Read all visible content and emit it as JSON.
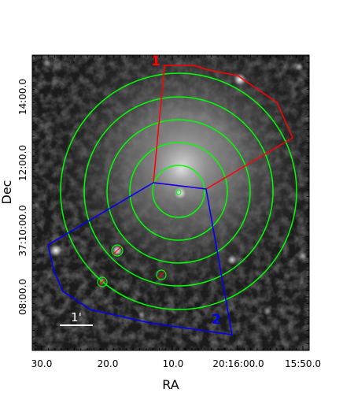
{
  "axes": {
    "xlabel": "RA",
    "ylabel": "Dec",
    "x_ticks": [
      "30.0",
      "20.0",
      "10.0",
      "20:16:00.0",
      "15:50.0"
    ],
    "y_ticks": [
      "08:00.0",
      "37:10:00.0",
      "12:00.0",
      "14:00.0"
    ]
  },
  "overlay": {
    "scale_bar_label": "1'",
    "region_1_label": "1",
    "region_2_label": "2",
    "region_1_color": "#ff0000",
    "region_2_color": "#0000ff",
    "annulus_color": "#00ff00",
    "source_marker_color": "#ff0000"
  },
  "image": {
    "colormap": "grayscale",
    "description_kind": "X-ray sky image with smoothed diffuse emission"
  }
}
